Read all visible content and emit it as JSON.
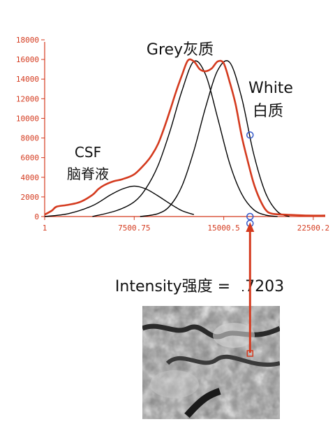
{
  "chart_data": {
    "type": "line",
    "title": "",
    "xlabel": "",
    "ylabel": "",
    "xlim": [
      1,
      23500
    ],
    "ylim": [
      0,
      18000
    ],
    "x_ticks": [
      {
        "value": 1,
        "label": "1"
      },
      {
        "value": 7500.75,
        "label": "7500.75"
      },
      {
        "value": 15000.5,
        "label": "15000.5"
      },
      {
        "value": 22500.2,
        "label": "22500.2"
      }
    ],
    "y_ticks": [
      {
        "value": 0,
        "label": "0"
      },
      {
        "value": 2000,
        "label": "2000"
      },
      {
        "value": 4000,
        "label": "4000"
      },
      {
        "value": 6000,
        "label": "6000"
      },
      {
        "value": 8000,
        "label": "8000"
      },
      {
        "value": 10000,
        "label": "10000"
      },
      {
        "value": 12000,
        "label": "12000"
      },
      {
        "value": 14000,
        "label": "14000"
      },
      {
        "value": 16000,
        "label": "16000"
      },
      {
        "value": 18000,
        "label": "18000"
      }
    ],
    "colors": {
      "histogram": "#d43a1e",
      "axis": "#d43a1e",
      "components": "#000000",
      "markers": "#2f55c8",
      "pointer": "#d43a1e"
    },
    "series": [
      {
        "kind": "histogram",
        "x": [
          1,
          600,
          1000,
          2000,
          3000,
          4000,
          4500,
          5000,
          5800,
          6500,
          7500,
          8500,
          9000,
          9500,
          10000,
          10500,
          11000,
          11500,
          12000,
          12500,
          13000,
          13500,
          14000,
          14500,
          15000,
          15500,
          16000,
          16500,
          17000,
          17500,
          18000,
          18500,
          19000,
          20000,
          21000,
          22000,
          23500
        ],
        "values": [
          200,
          600,
          1000,
          1200,
          1500,
          2200,
          2800,
          3200,
          3600,
          3800,
          4300,
          5500,
          6300,
          7400,
          9000,
          10800,
          12700,
          14400,
          15900,
          15800,
          15000,
          14800,
          15100,
          15800,
          15600,
          13700,
          11400,
          8200,
          5700,
          3400,
          1800,
          700,
          300,
          200,
          150,
          100,
          100
        ]
      },
      {
        "kind": "gaussian-fit",
        "x": [
          1,
          2000,
          4000,
          5500,
          6500,
          7500,
          8500,
          9500,
          10500,
          11500,
          12500
        ],
        "values": [
          0,
          300,
          1100,
          2200,
          2800,
          3100,
          2800,
          2100,
          1300,
          600,
          200
        ]
      },
      {
        "kind": "gaussian-fit",
        "x": [
          4000,
          6000,
          7500,
          8500,
          9500,
          10500,
          11500,
          12500,
          13500,
          14500,
          15500,
          16500,
          17500,
          18500,
          19500
        ],
        "values": [
          0,
          600,
          1500,
          2900,
          5200,
          8700,
          12800,
          15800,
          14400,
          10000,
          5400,
          2300,
          700,
          150,
          0
        ]
      },
      {
        "kind": "gaussian-fit",
        "x": [
          8000,
          9500,
          10500,
          11500,
          12500,
          13500,
          14500,
          15500,
          16500,
          17500,
          18500,
          19500,
          20500
        ],
        "values": [
          0,
          300,
          1100,
          3100,
          6700,
          11200,
          14900,
          15700,
          12100,
          6400,
          2400,
          500,
          0
        ]
      }
    ],
    "markers": [
      {
        "x": 17200,
        "y": 8300
      },
      {
        "x": 17200,
        "y": 0
      },
      {
        "x": 17200,
        "y": -700
      }
    ],
    "annotations": [
      {
        "line1": "CSF",
        "line2": "脑脊液"
      },
      {
        "line1": "Grey灰质"
      },
      {
        "line1": "White",
        "line2": "白质"
      }
    ],
    "pointer": {
      "x": 17203,
      "label": "Intensity强度 = 17203"
    }
  },
  "inset_image": {
    "description": "grayscale brain MRI crop",
    "marker_color": "#d43a1e"
  }
}
